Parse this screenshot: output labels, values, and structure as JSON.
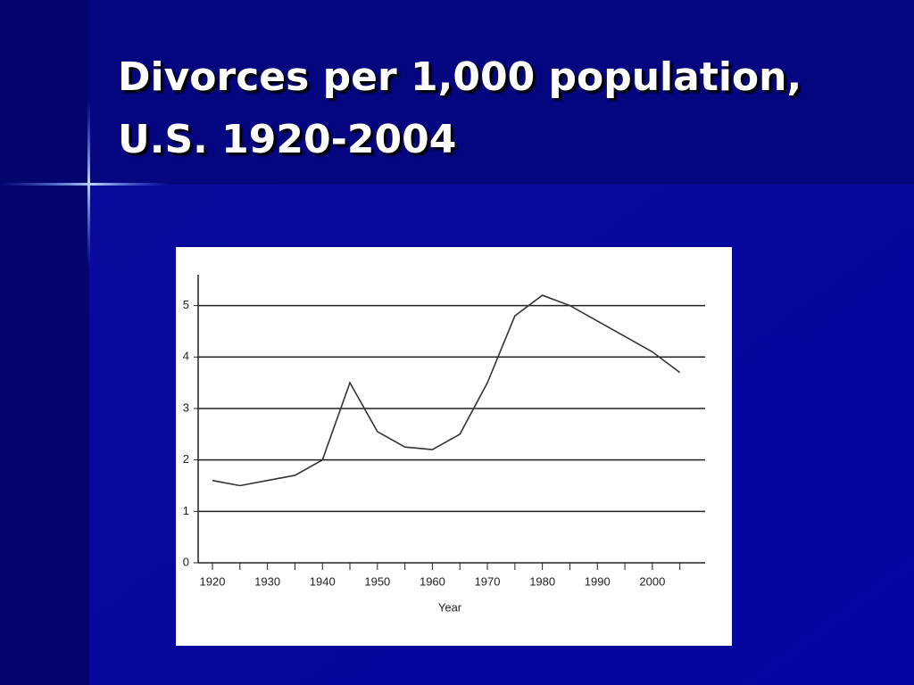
{
  "chart_data": {
    "type": "line",
    "title": "Divorces per 1,000 population, U.S. 1920-2004",
    "x_label": "Year",
    "x": [
      1920,
      1925,
      1930,
      1935,
      1940,
      1945,
      1950,
      1955,
      1960,
      1965,
      1970,
      1975,
      1980,
      1985,
      1990,
      1995,
      2000,
      2005
    ],
    "series": [
      {
        "color": "#333333",
        "values": [
          1.6,
          1.5,
          1.6,
          1.7,
          2.0,
          3.5,
          2.55,
          2.25,
          2.2,
          2.5,
          3.5,
          4.8,
          5.2,
          5.0,
          4.7,
          4.4,
          4.1,
          3.7
        ]
      }
    ],
    "xlim": [
      1917.4,
      2009.6
    ],
    "xticks": [
      1920,
      1930,
      1940,
      1950,
      1960,
      1970,
      1980,
      1990,
      2000
    ],
    "xminorticks": [
      1925,
      1935,
      1945,
      1955,
      1965,
      1975,
      1985,
      1995,
      2005
    ],
    "ylim": [
      0,
      5.6
    ],
    "yticks": [
      0,
      1,
      2,
      3,
      4,
      5
    ],
    "grid": true
  }
}
